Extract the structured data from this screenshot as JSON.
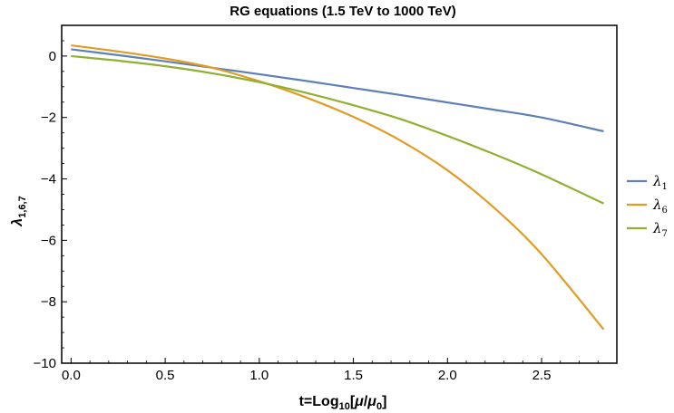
{
  "chart_data": {
    "type": "line",
    "title": "RG equations (1.5 TeV to 1000 TeV)",
    "xlabel": "t=Log10[μ/μ0]",
    "ylabel": "λ1,6,7",
    "xlim": [
      -0.05,
      2.9
    ],
    "ylim": [
      -10,
      1
    ],
    "xticks": [
      0.0,
      0.5,
      1.0,
      1.5,
      2.0,
      2.5
    ],
    "xtick_labels": [
      "0.0",
      "0.5",
      "1.0",
      "1.5",
      "2.0",
      "2.5"
    ],
    "yticks": [
      0,
      -2,
      -4,
      -6,
      -8,
      -10
    ],
    "ytick_labels": [
      "0",
      "−2",
      "−4",
      "−6",
      "−8",
      "−10"
    ],
    "grid": false,
    "legend_position": "right",
    "x": [
      0.0,
      0.25,
      0.5,
      0.75,
      1.0,
      1.25,
      1.5,
      1.75,
      2.0,
      2.25,
      2.5,
      2.83
    ],
    "series": [
      {
        "name": "λ1",
        "color": "#5e81b5",
        "values": [
          0.22,
          0.03,
          -0.17,
          -0.38,
          -0.59,
          -0.81,
          -1.04,
          -1.27,
          -1.51,
          -1.75,
          -2.0,
          -2.45
        ]
      },
      {
        "name": "λ6",
        "color": "#e19c24",
        "values": [
          0.35,
          0.15,
          -0.08,
          -0.38,
          -0.82,
          -1.35,
          -1.98,
          -2.75,
          -3.72,
          -4.95,
          -6.45,
          -8.9
        ]
      },
      {
        "name": "λ7",
        "color": "#8fb032",
        "values": [
          0.0,
          -0.15,
          -0.33,
          -0.56,
          -0.85,
          -1.2,
          -1.6,
          -2.05,
          -2.6,
          -3.2,
          -3.85,
          -4.8
        ]
      }
    ]
  }
}
